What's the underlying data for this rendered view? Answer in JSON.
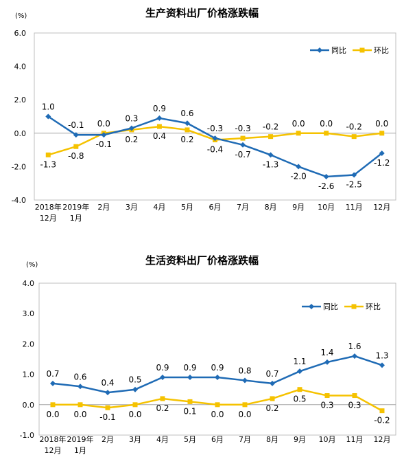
{
  "chart_data": [
    {
      "type": "line",
      "title": "生产资料出厂价格涨跌幅",
      "unit": "(%)",
      "categories": [
        [
          "2018年",
          "12月"
        ],
        [
          "2019年",
          "1月"
        ],
        [
          "2月"
        ],
        [
          "3月"
        ],
        [
          "4月"
        ],
        [
          "5月"
        ],
        [
          "6月"
        ],
        [
          "7月"
        ],
        [
          "8月"
        ],
        [
          "9月"
        ],
        [
          "10月"
        ],
        [
          "11月"
        ],
        [
          "12月"
        ]
      ],
      "ylim": [
        -4.0,
        6.0
      ],
      "yticks": [
        "6.0",
        "4.0",
        "2.0",
        "0.0",
        "-2.0",
        "-4.0"
      ],
      "ytick_values": [
        6,
        4,
        2,
        0,
        -2,
        -4
      ],
      "legend_position": "top-right",
      "series": [
        {
          "name": "同比",
          "color": "#1f6bb5",
          "marker": "diamond",
          "values": [
            1.0,
            -0.1,
            -0.1,
            0.3,
            0.9,
            0.6,
            -0.3,
            -0.7,
            -1.3,
            -2.0,
            -2.6,
            -2.5,
            -1.2
          ],
          "labels": [
            "1.0",
            "-0.1",
            "-0.1",
            "0.3",
            "0.9",
            "0.6",
            "-0.3",
            "-0.7",
            "-1.3",
            "-2.0",
            "-2.6",
            "-2.5",
            "-1.2"
          ]
        },
        {
          "name": "环比",
          "color": "#f5c200",
          "marker": "square",
          "values": [
            -1.3,
            -0.8,
            0.0,
            0.2,
            0.4,
            0.2,
            -0.4,
            -0.3,
            -0.2,
            0.0,
            0.0,
            -0.2,
            0.0
          ],
          "labels": [
            "-1.3",
            "-0.8",
            "0.0",
            "0.2",
            "0.4",
            "0.2",
            "-0.4",
            "-0.3",
            "-0.2",
            "0.0",
            "0.0",
            "-0.2",
            "0.0"
          ]
        }
      ]
    },
    {
      "type": "line",
      "title": "生活资料出厂价格涨跌幅",
      "unit": "(%)",
      "categories": [
        [
          "2018年",
          "12月"
        ],
        [
          "2019年",
          "1月"
        ],
        [
          "2月"
        ],
        [
          "3月"
        ],
        [
          "4月"
        ],
        [
          "5月"
        ],
        [
          "6月"
        ],
        [
          "7月"
        ],
        [
          "8月"
        ],
        [
          "9月"
        ],
        [
          "10月"
        ],
        [
          "11月"
        ],
        [
          "12月"
        ]
      ],
      "ylim": [
        -1.0,
        4.0
      ],
      "yticks": [
        "4.0",
        "3.0",
        "2.0",
        "1.0",
        "0.0",
        "-1.0"
      ],
      "ytick_values": [
        4,
        3,
        2,
        1,
        0,
        -1
      ],
      "legend_position": "top-right",
      "series": [
        {
          "name": "同比",
          "color": "#1f6bb5",
          "marker": "diamond",
          "values": [
            0.7,
            0.6,
            0.4,
            0.5,
            0.9,
            0.9,
            0.9,
            0.8,
            0.7,
            1.1,
            1.4,
            1.6,
            1.3
          ],
          "labels": [
            "0.7",
            "0.6",
            "0.4",
            "0.5",
            "0.9",
            "0.9",
            "0.9",
            "0.8",
            "0.7",
            "1.1",
            "1.4",
            "1.6",
            "1.3"
          ]
        },
        {
          "name": "环比",
          "color": "#f5c200",
          "marker": "square",
          "values": [
            0.0,
            0.0,
            -0.1,
            0.0,
            0.2,
            0.1,
            0.0,
            0.0,
            0.2,
            0.5,
            0.3,
            0.3,
            -0.2
          ],
          "labels": [
            "0.0",
            "0.0",
            "-0.1",
            "0.0",
            "0.2",
            "0.1",
            "0.0",
            "0.0",
            "0.2",
            "0.5",
            "0.3",
            "0.3",
            "-0.2"
          ]
        }
      ]
    }
  ]
}
